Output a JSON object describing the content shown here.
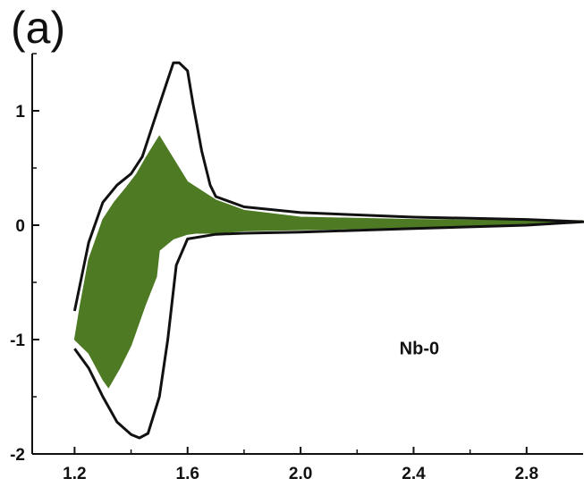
{
  "panel_label": "(a)",
  "chart_data": {
    "type": "line",
    "title": "",
    "xlabel": "",
    "ylabel": "",
    "xlim": [
      1.05,
      3.0
    ],
    "ylim": [
      -2.0,
      1.5
    ],
    "x_ticks": [
      1.2,
      1.6,
      2.0,
      2.4,
      2.8
    ],
    "x_tick_labels": [
      "1.2",
      "1.6",
      "2.0",
      "2.4",
      "2.8"
    ],
    "y_ticks": [
      1,
      0,
      -1,
      -2
    ],
    "y_tick_labels": [
      "1",
      "0",
      "-1",
      "-2"
    ],
    "annotation": "Nb-0",
    "colors": {
      "curve": "#111111",
      "fill": "#4d7a23"
    },
    "series": [
      {
        "style": "black outline curve",
        "x": [
          1.2,
          1.25,
          1.3,
          1.35,
          1.4,
          1.43,
          1.46,
          1.5,
          1.53,
          1.56,
          1.6,
          1.7,
          1.8,
          2.0,
          2.4,
          2.8,
          3.0,
          2.8,
          2.4,
          2.0,
          1.8,
          1.7,
          1.68,
          1.65,
          1.62,
          1.6,
          1.57,
          1.55,
          1.52,
          1.48,
          1.44,
          1.4,
          1.35,
          1.3,
          1.25,
          1.2
        ],
        "y": [
          -1.08,
          -1.25,
          -1.5,
          -1.72,
          -1.83,
          -1.86,
          -1.82,
          -1.5,
          -1.0,
          -0.35,
          -0.12,
          -0.08,
          -0.07,
          -0.06,
          -0.03,
          0.0,
          0.03,
          0.05,
          0.07,
          0.11,
          0.16,
          0.25,
          0.35,
          0.65,
          1.05,
          1.35,
          1.42,
          1.42,
          1.2,
          0.9,
          0.6,
          0.45,
          0.35,
          0.2,
          -0.15,
          -0.75
        ]
      },
      {
        "style": "green filled region",
        "x": [
          1.2,
          1.25,
          1.3,
          1.32,
          1.36,
          1.4,
          1.45,
          1.49,
          1.5,
          1.55,
          1.6,
          1.63,
          1.68,
          1.7,
          1.75,
          1.8,
          2.0,
          2.4,
          2.8,
          3.0,
          2.8,
          2.4,
          2.0,
          1.8,
          1.7,
          1.6,
          1.55,
          1.5,
          1.48,
          1.45,
          1.42,
          1.38,
          1.34,
          1.3,
          1.25,
          1.22
        ],
        "y": [
          -1.0,
          -1.12,
          -1.35,
          -1.42,
          -1.25,
          -1.05,
          -0.7,
          -0.45,
          -0.22,
          -0.12,
          -0.08,
          -0.07,
          -0.07,
          -0.07,
          -0.06,
          -0.05,
          -0.04,
          -0.02,
          0.0,
          0.04,
          0.04,
          0.05,
          0.07,
          0.13,
          0.22,
          0.38,
          0.58,
          0.78,
          0.7,
          0.58,
          0.45,
          0.32,
          0.2,
          0.05,
          -0.3,
          -0.7
        ]
      }
    ]
  }
}
